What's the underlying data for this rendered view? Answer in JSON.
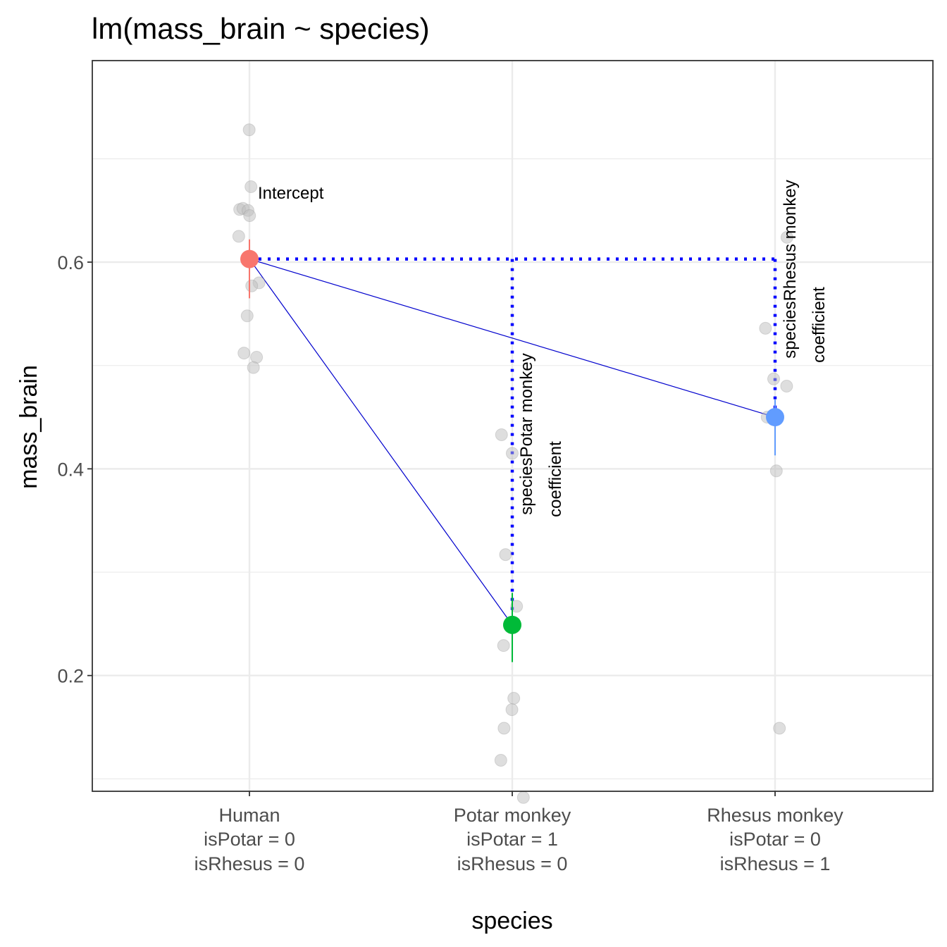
{
  "chart_data": {
    "type": "scatter",
    "title": "lm(mass_brain ~ species)",
    "xlabel": "species",
    "ylabel": "mass_brain",
    "ylim": [
      0.088,
      0.795
    ],
    "yticks": [
      "0.2",
      "0.4",
      "0.6"
    ],
    "grid": true,
    "legend": "none",
    "categories": [
      {
        "name": "Human",
        "code_potar": "isPotar = 0",
        "code_rhesus": "isRhesus = 0",
        "color": "#F8766D"
      },
      {
        "name": "Potar monkey",
        "code_potar": "isPotar = 1",
        "code_rhesus": "isRhesus = 0",
        "color": "#00BA38"
      },
      {
        "name": "Rhesus monkey",
        "code_potar": "isPotar = 0",
        "code_rhesus": "isRhesus = 1",
        "color": "#619CFF"
      }
    ],
    "means": [
      {
        "category": "Human",
        "value": 0.603,
        "ci": [
          0.565,
          0.622
        ]
      },
      {
        "category": "Potar monkey",
        "value": 0.249,
        "ci": [
          0.213,
          0.28
        ]
      },
      {
        "category": "Rhesus monkey",
        "value": 0.45,
        "ci": [
          0.413,
          0.467
        ]
      }
    ],
    "points": [
      {
        "category": "Human",
        "values": [
          0.728,
          0.673,
          0.651,
          0.652,
          0.65,
          0.645,
          0.625,
          0.58,
          0.577,
          0.548,
          0.512,
          0.508,
          0.498
        ]
      },
      {
        "category": "Potar monkey",
        "values": [
          0.433,
          0.415,
          0.317,
          0.267,
          0.229,
          0.178,
          0.167,
          0.149,
          0.118,
          0.082
        ]
      },
      {
        "category": "Rhesus monkey",
        "values": [
          0.624,
          0.536,
          0.487,
          0.48,
          0.45,
          0.448,
          0.398,
          0.149
        ]
      }
    ],
    "annotations": {
      "intercept": "Intercept",
      "potar_coef": [
        "speciesPotar monkey",
        "coefficient"
      ],
      "rhesus_coef": [
        "speciesRhesus monkey",
        "coefficient"
      ]
    },
    "colors": {
      "points": "#bdbdbd",
      "connector": "#0000cd",
      "reference": "#0000ff",
      "grid": "#ebebeb",
      "panel_border": "#333333"
    }
  }
}
